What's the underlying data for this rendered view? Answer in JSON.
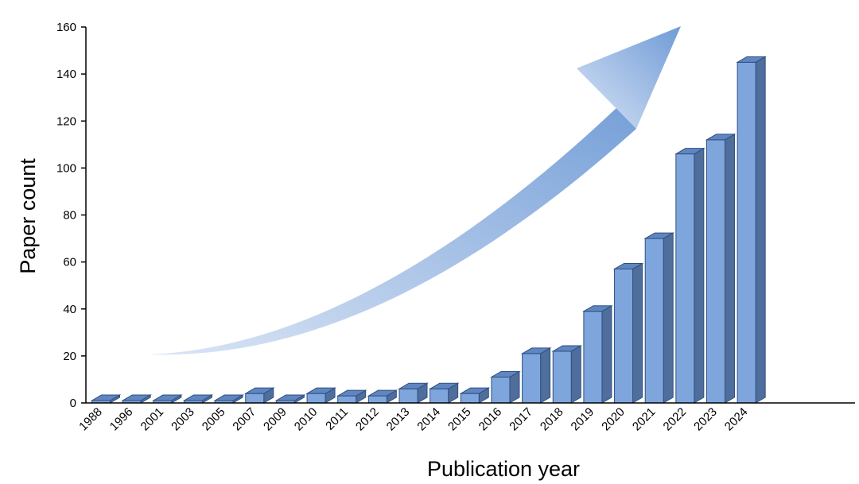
{
  "chart_data": {
    "type": "bar",
    "title": "",
    "xlabel": "Publication year",
    "ylabel": "Paper count",
    "ylim": [
      0,
      160
    ],
    "yticks": [
      0,
      20,
      40,
      60,
      80,
      100,
      120,
      140,
      160
    ],
    "categories": [
      "1988",
      "1996",
      "2001",
      "2003",
      "2005",
      "2007",
      "2009",
      "2010",
      "2011",
      "2012",
      "2013",
      "2014",
      "2015",
      "2016",
      "2017",
      "2018",
      "2019",
      "2020",
      "2021",
      "2022",
      "2023",
      "2024"
    ],
    "values": [
      1,
      1,
      1,
      1,
      1,
      4,
      1,
      4,
      3,
      3,
      6,
      6,
      4,
      11,
      21,
      22,
      39,
      57,
      70,
      106,
      112,
      145
    ],
    "grid": false,
    "legend": "none",
    "style": "3d-column",
    "colors": {
      "bar_front": "#7fa6dc",
      "bar_side": "#4f6e9c",
      "bar_top": "#5f86c0",
      "bar_edge": "#2f4f80",
      "arrow_start": "#d9e4f5",
      "arrow_end": "#6f9bd6"
    },
    "annotations": [
      {
        "kind": "growth-arrow",
        "direction": "up-right"
      }
    ]
  }
}
